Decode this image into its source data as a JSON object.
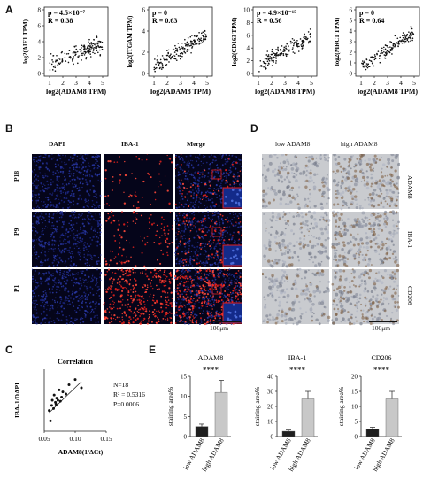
{
  "panel_letters": {
    "A": "A",
    "B": "B",
    "C": "C",
    "D": "D",
    "E": "E"
  },
  "panel_a": {
    "plots": [
      {
        "ylabel": "log2(AIF1 TPM)",
        "xlabel": "log2(ADAM8 TPM)",
        "p_text": "p = 4.5×10⁻⁷",
        "r_text": "R = 0.38",
        "yticks": [
          "0",
          "2",
          "4",
          "6",
          "8"
        ],
        "xticks": [
          "1",
          "2",
          "3",
          "4",
          "5"
        ]
      },
      {
        "ylabel": "log2(ITGAM TPM)",
        "xlabel": "log2(ADAM8 TPM)",
        "p_text": "p = 0",
        "r_text": "R = 0.63",
        "yticks": [
          "0",
          "2",
          "4",
          "6"
        ],
        "xticks": [
          "1",
          "2",
          "3",
          "4",
          "5"
        ]
      },
      {
        "ylabel": "log2(CD163 TPM)",
        "xlabel": "log2(ADAM8 TPM)",
        "p_text": "p = 4.9×10⁻¹⁵",
        "r_text": "R = 0.56",
        "yticks": [
          "0",
          "2",
          "4",
          "6",
          "8",
          "10"
        ],
        "xticks": [
          "1",
          "2",
          "3",
          "4",
          "5"
        ]
      },
      {
        "ylabel": "log2(MRC1 TPM)",
        "xlabel": "log2(ADAM8 TPM)",
        "p_text": "p = 0",
        "r_text": "R = 0.64",
        "yticks": [
          "0",
          "1",
          "2",
          "3",
          "4",
          "5",
          "6"
        ],
        "xticks": [
          "1",
          "2",
          "3",
          "4",
          "5"
        ]
      }
    ]
  },
  "panel_b": {
    "columns": [
      "DAPI",
      "IBA-1",
      "Merge"
    ],
    "rows": [
      "P18",
      "P9",
      "P1"
    ],
    "scale": "100μm"
  },
  "panel_d": {
    "columns": [
      "low ADAM8",
      "high ADAM8"
    ],
    "rows": [
      "ADAM8",
      "IBA-1",
      "CD206"
    ],
    "scale": "100μm"
  },
  "chart_data": [
    {
      "type": "scatter",
      "title": "Correlation",
      "xlabel": "ADAM8(1/ΔCt)",
      "ylabel": "IBA-1/DAPI",
      "xlim": [
        0.05,
        0.15
      ],
      "xticks": [
        "0.05",
        "0.10",
        "0.15"
      ],
      "annotations": [
        "N=18",
        "R² = 0.5316",
        "P=0.0006"
      ],
      "x": [
        0.058,
        0.06,
        0.062,
        0.063,
        0.065,
        0.066,
        0.068,
        0.069,
        0.07,
        0.072,
        0.074,
        0.076,
        0.078,
        0.08,
        0.085,
        0.09,
        0.1,
        0.11
      ],
      "y": [
        0.2,
        0.1,
        0.25,
        0.3,
        0.22,
        0.35,
        0.28,
        0.26,
        0.32,
        0.3,
        0.4,
        0.29,
        0.33,
        0.38,
        0.36,
        0.45,
        0.5,
        0.42
      ]
    },
    {
      "type": "bar",
      "title": "ADAM8",
      "ylabel": "staining area%",
      "categories": [
        "low ADAM8",
        "high ADAM8"
      ],
      "values": [
        2.5,
        11
      ],
      "errors": [
        0.6,
        3
      ],
      "ylim": [
        0,
        15
      ],
      "yticks": [
        "0",
        "5",
        "10",
        "15"
      ],
      "significance": "****",
      "colors": [
        "#1f1f1f",
        "#c8c8c8"
      ]
    },
    {
      "type": "bar",
      "title": "IBA-1",
      "ylabel": "staining area%",
      "categories": [
        "low ADAM8",
        "high ADAM8"
      ],
      "values": [
        3.5,
        25
      ],
      "errors": [
        0.8,
        5
      ],
      "ylim": [
        0,
        40
      ],
      "yticks": [
        "0",
        "10",
        "20",
        "30",
        "40"
      ],
      "significance": "****",
      "colors": [
        "#1f1f1f",
        "#c8c8c8"
      ]
    },
    {
      "type": "bar",
      "title": "CD206",
      "ylabel": "staining area%",
      "categories": [
        "low ADAM8",
        "high ADAM8"
      ],
      "values": [
        2.5,
        12.5
      ],
      "errors": [
        0.6,
        2.5
      ],
      "ylim": [
        0,
        20
      ],
      "yticks": [
        "0",
        "5",
        "10",
        "15",
        "20"
      ],
      "significance": "****",
      "colors": [
        "#1f1f1f",
        "#c8c8c8"
      ]
    }
  ]
}
